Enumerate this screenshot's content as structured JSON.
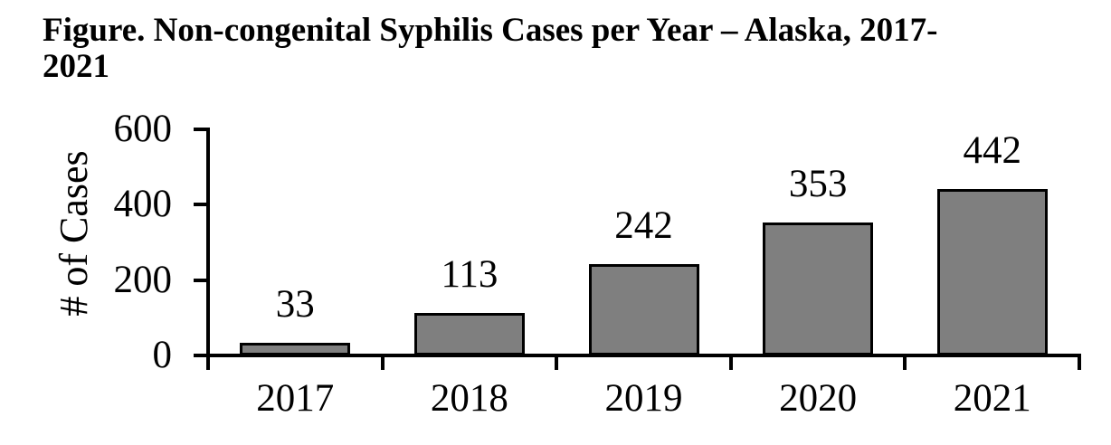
{
  "title": {
    "line1": "Figure. Non-congenital Syphilis Cases per Year – Alaska, 2017-",
    "line2": "2021"
  },
  "chart_data": {
    "type": "bar",
    "title": "Figure. Non-congenital Syphilis Cases per Year – Alaska, 2017-2021",
    "categories": [
      "2017",
      "2018",
      "2019",
      "2020",
      "2021"
    ],
    "values": [
      33,
      113,
      242,
      353,
      442
    ],
    "data_labels": [
      33,
      113,
      242,
      353,
      442
    ],
    "xlabel": "",
    "ylabel": "# of Cases",
    "ylim": [
      0,
      600
    ],
    "yticks": [
      0,
      200,
      400,
      600
    ],
    "grid": false,
    "legend": false,
    "colors": {
      "bar_fill": "#7F7F7F",
      "bar_border": "#000000",
      "axis": "#000000",
      "text": "#000000",
      "background": "#FFFFFF"
    }
  }
}
